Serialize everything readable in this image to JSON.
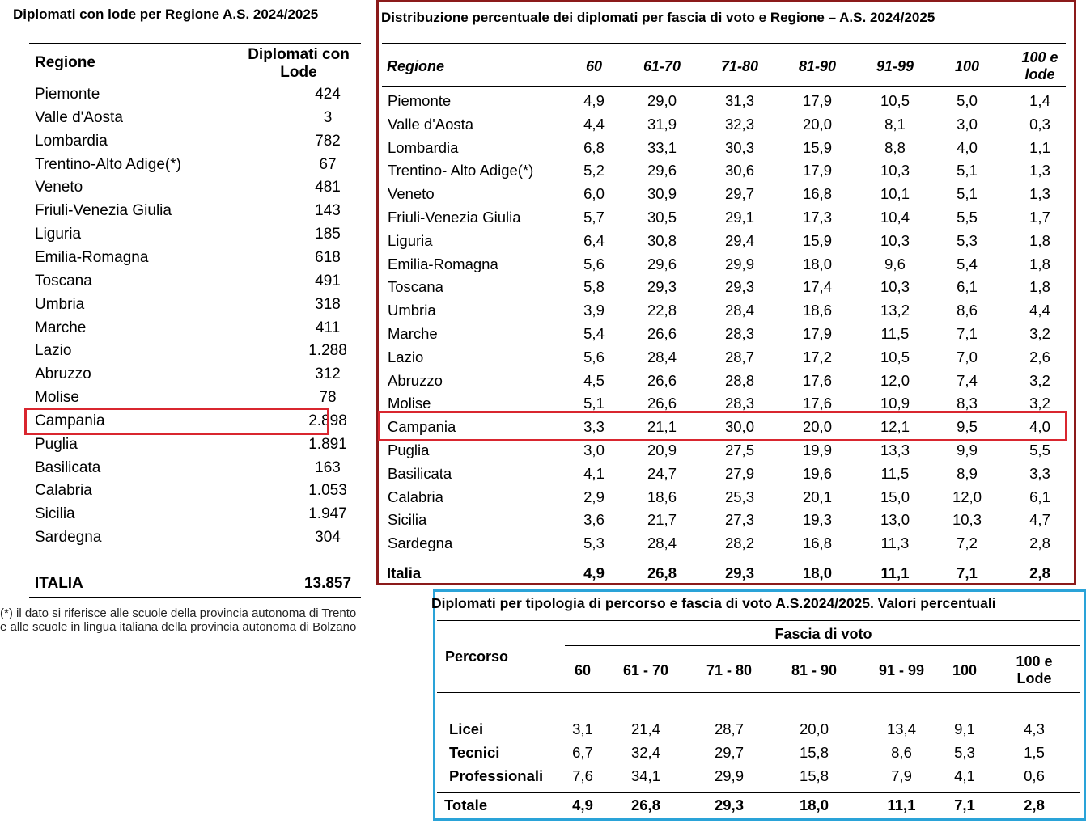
{
  "left_table": {
    "title": "Diplomati con lode per Regione A.S. 2024/2025",
    "head_region": "Regione",
    "head_count": "Diplomati con Lode",
    "rows": [
      {
        "region": "Piemonte",
        "value": "424"
      },
      {
        "region": "Valle d'Aosta",
        "value": "3"
      },
      {
        "region": "Lombardia",
        "value": "782"
      },
      {
        "region": "Trentino-Alto Adige(*)",
        "value": "67"
      },
      {
        "region": "Veneto",
        "value": "481"
      },
      {
        "region": "Friuli-Venezia Giulia",
        "value": "143"
      },
      {
        "region": "Liguria",
        "value": "185"
      },
      {
        "region": "Emilia-Romagna",
        "value": "618"
      },
      {
        "region": "Toscana",
        "value": "491"
      },
      {
        "region": "Umbria",
        "value": "318"
      },
      {
        "region": "Marche",
        "value": "411"
      },
      {
        "region": "Lazio",
        "value": "1.288"
      },
      {
        "region": "Abruzzo",
        "value": "312"
      },
      {
        "region": "Molise",
        "value": "78"
      },
      {
        "region": "Campania",
        "value": "2.898"
      },
      {
        "region": "Puglia",
        "value": "1.891"
      },
      {
        "region": "Basilicata",
        "value": "163"
      },
      {
        "region": "Calabria",
        "value": "1.053"
      },
      {
        "region": "Sicilia",
        "value": "1.947"
      },
      {
        "region": "Sardegna",
        "value": "304"
      }
    ],
    "total": {
      "region": "ITALIA",
      "value": "13.857"
    },
    "footnote_line1": "(*) il dato si riferisce alle scuole della provincia autonoma di Trento",
    "footnote_line2": "e alle scuole in   lingua italiana della provincia autonoma di Bolzano"
  },
  "center_table": {
    "title": "Distribuzione percentuale dei diplomati per fascia di voto e Regione – A.S. 2024/2025",
    "head_region": "Regione",
    "columns": [
      "60",
      "61-70",
      "71-80",
      "81-90",
      "91-99",
      "100",
      "100 e lode"
    ],
    "rows": [
      {
        "region": "Piemonte",
        "values": [
          "4,9",
          "29,0",
          "31,3",
          "17,9",
          "10,5",
          "5,0",
          "1,4"
        ]
      },
      {
        "region": "Valle d'Aosta",
        "values": [
          "4,4",
          "31,9",
          "32,3",
          "20,0",
          "8,1",
          "3,0",
          "0,3"
        ]
      },
      {
        "region": "Lombardia",
        "values": [
          "6,8",
          "33,1",
          "30,3",
          "15,9",
          "8,8",
          "4,0",
          "1,1"
        ]
      },
      {
        "region": "Trentino- Alto Adige(*)",
        "values": [
          "5,2",
          "29,6",
          "30,6",
          "17,9",
          "10,3",
          "5,1",
          "1,3"
        ]
      },
      {
        "region": "Veneto",
        "values": [
          "6,0",
          "30,9",
          "29,7",
          "16,8",
          "10,1",
          "5,1",
          "1,3"
        ]
      },
      {
        "region": "Friuli-Venezia Giulia",
        "values": [
          "5,7",
          "30,5",
          "29,1",
          "17,3",
          "10,4",
          "5,5",
          "1,7"
        ]
      },
      {
        "region": "Liguria",
        "values": [
          "6,4",
          "30,8",
          "29,4",
          "15,9",
          "10,3",
          "5,3",
          "1,8"
        ]
      },
      {
        "region": "Emilia-Romagna",
        "values": [
          "5,6",
          "29,6",
          "29,9",
          "18,0",
          "9,6",
          "5,4",
          "1,8"
        ]
      },
      {
        "region": "Toscana",
        "values": [
          "5,8",
          "29,3",
          "29,3",
          "17,4",
          "10,3",
          "6,1",
          "1,8"
        ]
      },
      {
        "region": "Umbria",
        "values": [
          "3,9",
          "22,8",
          "28,4",
          "18,6",
          "13,2",
          "8,6",
          "4,4"
        ]
      },
      {
        "region": "Marche",
        "values": [
          "5,4",
          "26,6",
          "28,3",
          "17,9",
          "11,5",
          "7,1",
          "3,2"
        ]
      },
      {
        "region": "Lazio",
        "values": [
          "5,6",
          "28,4",
          "28,7",
          "17,2",
          "10,5",
          "7,0",
          "2,6"
        ]
      },
      {
        "region": "Abruzzo",
        "values": [
          "4,5",
          "26,6",
          "28,8",
          "17,6",
          "12,0",
          "7,4",
          "3,2"
        ]
      },
      {
        "region": "Molise",
        "values": [
          "5,1",
          "26,6",
          "28,3",
          "17,6",
          "10,9",
          "8,3",
          "3,2"
        ]
      },
      {
        "region": "Campania",
        "values": [
          "3,3",
          "21,1",
          "30,0",
          "20,0",
          "12,1",
          "9,5",
          "4,0"
        ]
      },
      {
        "region": "Puglia",
        "values": [
          "3,0",
          "20,9",
          "27,5",
          "19,9",
          "13,3",
          "9,9",
          "5,5"
        ]
      },
      {
        "region": "Basilicata",
        "values": [
          "4,1",
          "24,7",
          "27,9",
          "19,6",
          "11,5",
          "8,9",
          "3,3"
        ]
      },
      {
        "region": "Calabria",
        "values": [
          "2,9",
          "18,6",
          "25,3",
          "20,1",
          "15,0",
          "12,0",
          "6,1"
        ]
      },
      {
        "region": "Sicilia",
        "values": [
          "3,6",
          "21,7",
          "27,3",
          "19,3",
          "13,0",
          "10,3",
          "4,7"
        ]
      },
      {
        "region": "Sardegna",
        "values": [
          "5,3",
          "28,4",
          "28,2",
          "16,8",
          "11,3",
          "7,2",
          "2,8"
        ]
      }
    ],
    "total": {
      "region": "Italia",
      "values": [
        "4,9",
        "26,8",
        "29,3",
        "18,0",
        "11,1",
        "7,1",
        "2,8"
      ]
    }
  },
  "bottom_table": {
    "title": "Diplomati per tipologia di percorso e fascia di voto A.S.2024/2025. Valori percentuali",
    "group_header": "Fascia di voto",
    "head_percorso": "Percorso",
    "columns": [
      "60",
      "61 - 70",
      "71 - 80",
      "81 - 90",
      "91 - 99",
      "100",
      "100 e Lode"
    ],
    "rows": [
      {
        "name": "Licei",
        "values": [
          "3,1",
          "21,4",
          "28,7",
          "20,0",
          "13,4",
          "9,1",
          "4,3"
        ]
      },
      {
        "name": "Tecnici",
        "values": [
          "6,7",
          "32,4",
          "29,7",
          "15,8",
          "8,6",
          "5,3",
          "1,5"
        ]
      },
      {
        "name": "Professionali",
        "values": [
          "7,6",
          "34,1",
          "29,9",
          "15,8",
          "7,9",
          "4,1",
          "0,6"
        ]
      }
    ],
    "total": {
      "name": "Totale",
      "values": [
        "4,9",
        "26,8",
        "29,3",
        "18,0",
        "11,1",
        "7,1",
        "2,8"
      ]
    }
  },
  "colors": {
    "highlight_red": "#d9262f",
    "frame_darkred": "#8b1a1a",
    "frame_blue": "#2aa3d8"
  }
}
